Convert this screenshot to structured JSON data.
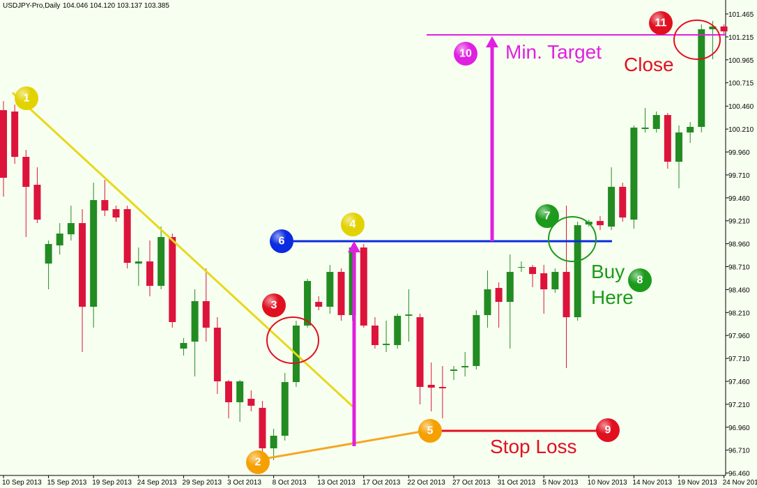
{
  "chart_data": {
    "type": "candlestick",
    "title": "USDJPY-Pro,Daily",
    "subtitle": "104.046 104.120 103.137 103.385",
    "up_color": "#228b22",
    "down_color": "#dc143c",
    "categories": [
      "10 Sep 2013",
      null,
      null,
      null,
      "15 Sep 2013",
      null,
      null,
      null,
      "19 Sep 2013",
      null,
      null,
      null,
      "24 Sep 2013",
      null,
      null,
      null,
      "29 Sep 2013",
      null,
      null,
      null,
      "3 Oct 2013",
      null,
      null,
      null,
      "8 Oct 2013",
      null,
      null,
      null,
      "13 Oct 2013",
      null,
      null,
      null,
      "17 Oct 2013",
      null,
      null,
      null,
      "22 Oct 2013",
      null,
      null,
      null,
      "27 Oct 2013",
      null,
      null,
      null,
      "31 Oct 2013",
      null,
      null,
      null,
      "5 Nov 2013",
      null,
      null,
      null,
      "10 Nov 2013",
      null,
      null,
      null,
      "14 Nov 2013",
      null,
      null,
      null,
      "19 Nov 2013",
      null,
      null,
      null,
      "24 Nov 2013"
    ],
    "open": [
      100.416,
      100.401,
      99.907,
      99.603,
      98.744,
      98.942,
      99.063,
      99.185,
      98.273,
      99.436,
      99.337,
      99.337,
      98.744,
      98.767,
      98.501,
      99.033,
      97.817,
      97.893,
      98.334,
      98.045,
      97.46,
      97.232,
      97.27,
      97.171,
      96.73,
      96.867,
      97.452,
      98.068,
      98.326,
      98.273,
      98.653,
      98.182,
      98.919,
      98.068,
      97.855,
      97.855,
      98.174,
      98.159,
      97.422,
      97.399,
      97.574,
      97.612,
      97.627,
      98.182,
      98.478,
      98.326,
      98.699,
      98.706,
      98.638,
      98.463,
      98.653,
      98.159,
      99.17,
      99.208,
      99.147,
      99.58,
      99.223,
      100.211,
      100.211,
      100.363,
      99.854,
      100.173,
      100.234,
      101.298,
      101.328
    ],
    "high": [
      100.515,
      100.477,
      99.983,
      99.793,
      98.995,
      99.185,
      99.375,
      99.337,
      99.626,
      99.656,
      99.375,
      99.375,
      98.919,
      98.995,
      99.147,
      99.071,
      97.931,
      98.463,
      98.691,
      98.159,
      97.475,
      97.475,
      97.361,
      97.247,
      96.943,
      97.551,
      98.121,
      98.577,
      98.387,
      98.729,
      98.691,
      98.957,
      98.957,
      98.159,
      98.121,
      98.197,
      98.463,
      98.197,
      97.665,
      97.627,
      97.627,
      97.779,
      98.235,
      98.668,
      98.539,
      98.843,
      98.767,
      98.729,
      98.729,
      98.691,
      99.375,
      99.2,
      99.223,
      99.261,
      99.793,
      99.626,
      100.249,
      100.439,
      100.401,
      100.386,
      100.249,
      100.287,
      101.351,
      101.389,
      101.351
    ],
    "low": [
      99.474,
      99.831,
      99.033,
      99.185,
      98.463,
      98.843,
      98.995,
      97.779,
      98.045,
      99.261,
      99.2,
      98.691,
      98.501,
      98.387,
      98.463,
      98.045,
      97.741,
      97.513,
      97.893,
      97.323,
      97.057,
      97.019,
      97.133,
      96.677,
      96.601,
      96.814,
      97.399,
      98.045,
      98.235,
      98.197,
      98.121,
      98.121,
      98.045,
      97.817,
      97.779,
      97.817,
      97.893,
      97.209,
      97.133,
      97.057,
      97.475,
      97.513,
      97.589,
      98.045,
      98.045,
      97.817,
      98.653,
      98.486,
      98.197,
      98.425,
      97.604,
      98.121,
      99.147,
      99.109,
      99.109,
      99.2,
      99.124,
      100.173,
      100.173,
      99.778,
      99.565,
      100.059,
      100.173,
      100.971,
      101.237
    ],
    "close": [
      99.679,
      99.907,
      99.58,
      99.223,
      98.957,
      99.071,
      99.185,
      98.273,
      99.436,
      99.322,
      99.246,
      98.752,
      98.767,
      98.501,
      99.033,
      98.106,
      97.878,
      98.334,
      98.045,
      97.46,
      97.232,
      97.46,
      97.194,
      96.73,
      96.867,
      97.452,
      98.068,
      98.554,
      98.273,
      98.653,
      98.182,
      98.919,
      98.068,
      97.855,
      97.87,
      98.174,
      98.189,
      97.399,
      97.391,
      97.384,
      97.589,
      97.627,
      98.182,
      98.463,
      98.326,
      98.653,
      98.706,
      98.63,
      98.463,
      98.653,
      98.159,
      99.162,
      99.2,
      99.162,
      99.58,
      99.246,
      100.226,
      100.226,
      100.363,
      99.854,
      100.173,
      100.234,
      101.298,
      101.328,
      101.275
    ],
    "ylim": [
      96.434,
      101.617
    ],
    "yticks": [
      101.465,
      101.215,
      100.965,
      100.715,
      {
        "value": 100.46,
        "label": "100.460"
      },
      {
        "value": 100.21,
        "label": "100.210"
      },
      {
        "value": 99.96,
        "label": "99.960"
      },
      {
        "value": 99.71,
        "label": "99.710"
      },
      {
        "value": 99.46,
        "label": "99.460"
      },
      {
        "value": 99.21,
        "label": "99.210"
      },
      {
        "value": 98.96,
        "label": "98.960"
      },
      {
        "value": 98.71,
        "label": "98.710"
      },
      {
        "value": 98.46,
        "label": "98.460"
      },
      {
        "value": 98.21,
        "label": "98.210"
      },
      {
        "value": 97.96,
        "label": "97.960"
      },
      {
        "value": 97.71,
        "label": "97.710"
      },
      {
        "value": 97.46,
        "label": "97.460"
      },
      {
        "value": 97.21,
        "label": "97.210"
      },
      {
        "value": 96.96,
        "label": "96.960"
      },
      {
        "value": 96.71,
        "label": "96.710"
      },
      {
        "value": 96.46,
        "label": "96.460"
      }
    ],
    "grid": false,
    "annotations": {
      "markers": [
        "1",
        "2",
        "3",
        "4",
        "5",
        "6",
        "7",
        "8",
        "9",
        "10",
        "11"
      ],
      "min_target": "Min. Target",
      "close": "Close",
      "buy_here": [
        "Buy",
        "Here"
      ],
      "stop_loss": "Stop Loss"
    }
  }
}
